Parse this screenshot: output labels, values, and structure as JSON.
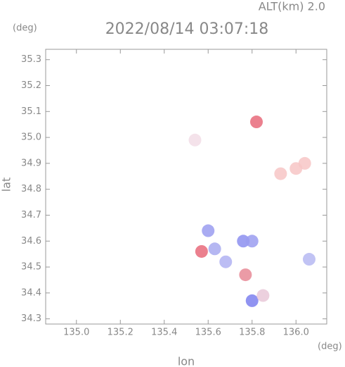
{
  "chart_data": {
    "type": "scatter",
    "title": "2022/08/14 03:07:18",
    "subtitle": "ALT(km) 2.0",
    "x_label": "lon",
    "y_label": "lat",
    "x_unit": "(deg)",
    "y_unit": "(deg)",
    "x": [
      135.54,
      135.93,
      136.0,
      136.04,
      135.6,
      135.63,
      135.68,
      135.76,
      135.8,
      136.06,
      135.8,
      135.85,
      135.57,
      135.77,
      135.82
    ],
    "y": [
      34.99,
      34.86,
      34.88,
      34.9,
      34.64,
      34.57,
      34.52,
      34.6,
      34.6,
      34.53,
      34.37,
      34.39,
      34.56,
      34.47,
      35.06
    ],
    "colors": [
      "#f2dde6",
      "#f7c6c6",
      "#f7c6c6",
      "#f7c6c6",
      "#9a9cf0",
      "#a8aaf0",
      "#b0b2f2",
      "#8c8ff0",
      "#9a9cf0",
      "#b6b8f2",
      "#7c80ee",
      "#e9c8d8",
      "#e86a7a",
      "#e88a96",
      "#e86a7a"
    ],
    "xlim": [
      134.86,
      136.14
    ],
    "ylim": [
      34.28,
      35.34
    ],
    "xticks": [
      {
        "value": 135,
        "label": "135.0"
      },
      135.2,
      135.4,
      135.6,
      135.8,
      {
        "value": 136,
        "label": "136.0"
      }
    ],
    "yticks": [
      34.3,
      34.4,
      34.5,
      34.6,
      34.7,
      34.8,
      34.9,
      {
        "value": 35,
        "label": "35.0"
      },
      35.1,
      35.2,
      35.3
    ]
  }
}
